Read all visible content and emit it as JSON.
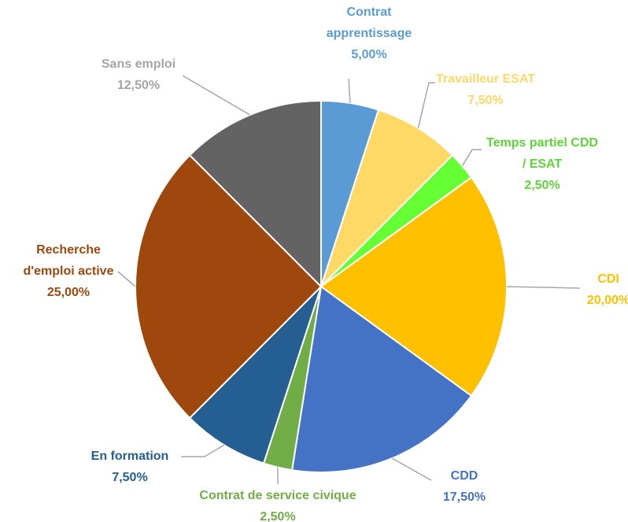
{
  "chart_data": {
    "type": "pie",
    "categories": [
      "Contrat apprentissage",
      "Travailleur ESAT",
      "Temps partiel CDD / ESAT",
      "CDI",
      "CDD",
      "Contrat de service civique",
      "En formation",
      "Recherche d'emploi active",
      "Sans emploi"
    ],
    "values": [
      5,
      7.5,
      2.5,
      20,
      17.5,
      2.5,
      7.5,
      25,
      12.5
    ],
    "value_labels": [
      "5,00%",
      "7,50%",
      "2,50%",
      "20,00%",
      "17,50%",
      "2,50%",
      "7,50%",
      "25,00%",
      "12,50%"
    ],
    "colors": [
      "#5b9bd5",
      "#ffd966",
      "#66ff33",
      "#ffc000",
      "#4472c4",
      "#70ad47",
      "#255e91",
      "#9e480e",
      "#636363"
    ],
    "label_colors": [
      "#5b9bd5",
      "#ffd966",
      "#5ed43a",
      "#ffc000",
      "#4472c4",
      "#70ad47",
      "#255e91",
      "#9e480e",
      "#a5a5a5"
    ]
  }
}
